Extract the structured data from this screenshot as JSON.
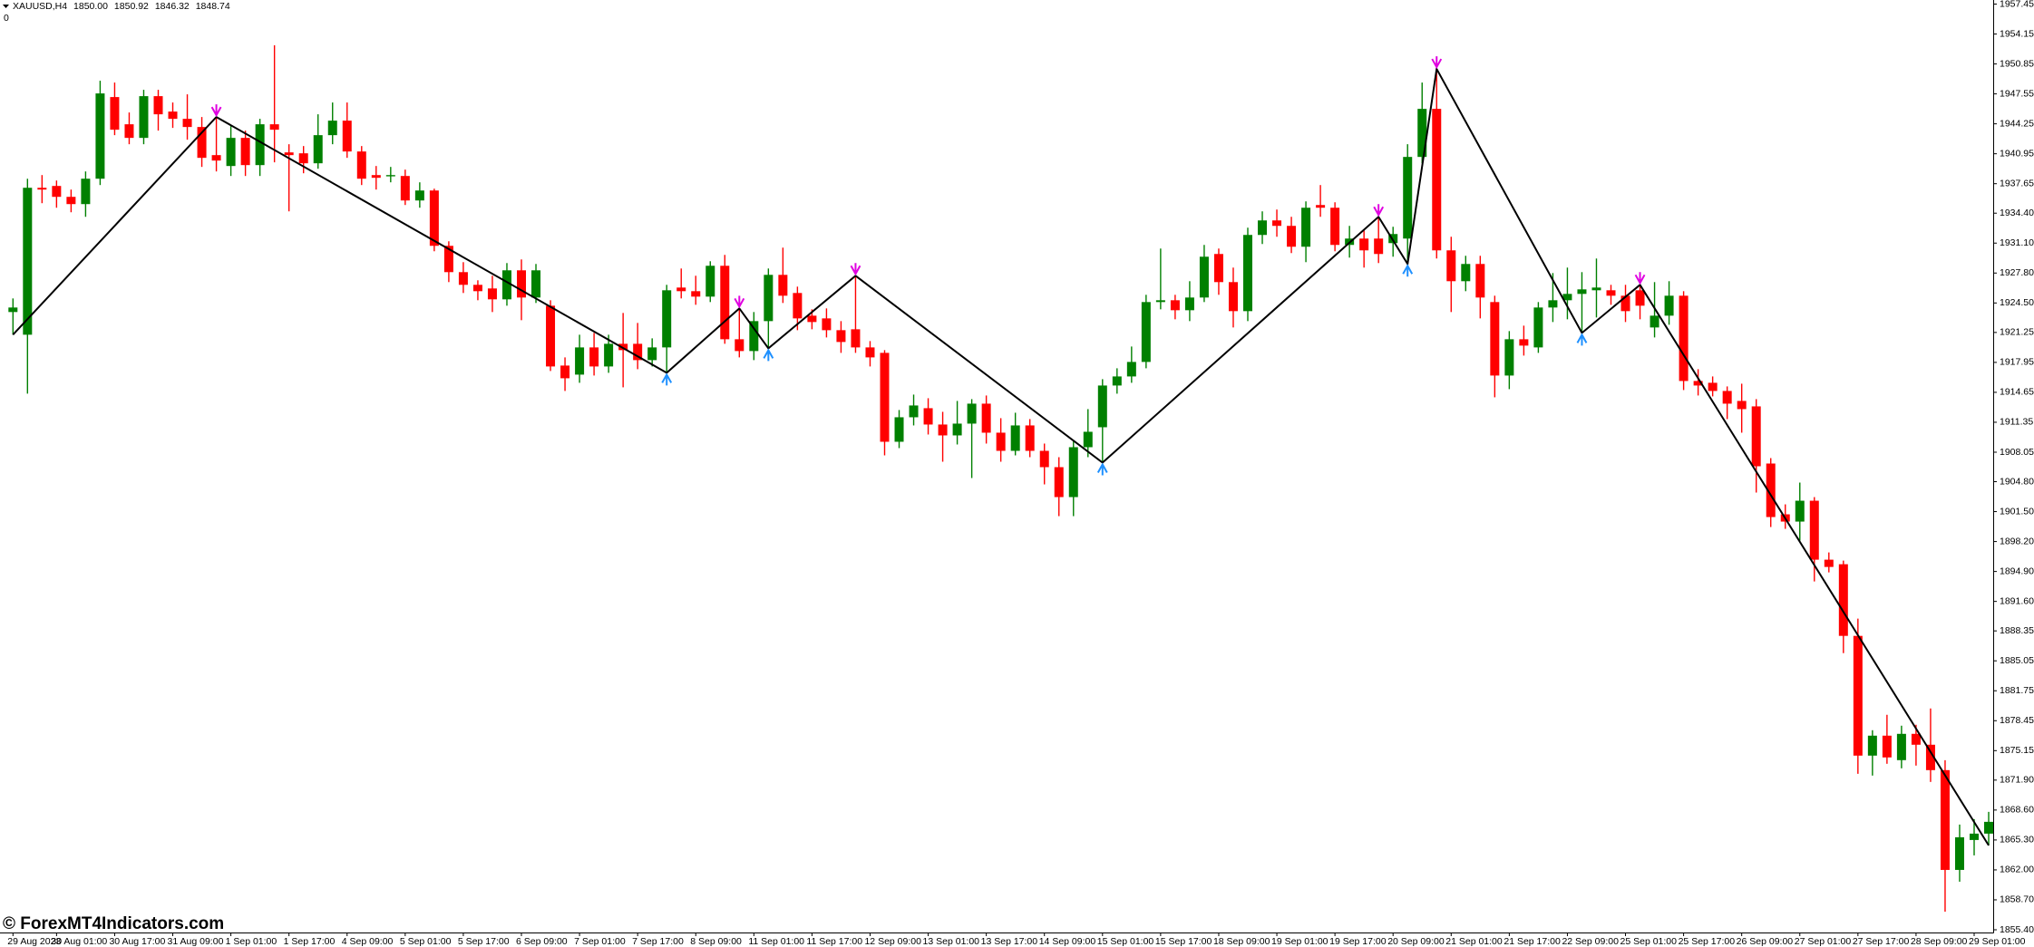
{
  "chart_data": {
    "type": "candlestick",
    "symbol": "XAUUSD,H4",
    "quote": [
      "1850.00",
      "1850.92",
      "1846.32",
      "1848.74"
    ],
    "subtitle": "0",
    "watermark": "© ForexMT4Indicators.com",
    "up_color": "#008000",
    "down_color": "#ff0000",
    "grid": false,
    "ylim": [
      1855.1,
      1957.9
    ],
    "yticks": [
      1957.45,
      1954.15,
      1950.85,
      1947.55,
      1944.25,
      1940.95,
      1937.65,
      {
        "value": 1934.4,
        "label": "1934.40"
      },
      {
        "value": 1931.1,
        "label": "1931.10"
      },
      {
        "value": 1927.8,
        "label": "1927.80"
      },
      {
        "value": 1924.5,
        "label": "1924.50"
      },
      1921.25,
      1917.95,
      1914.65,
      1911.35,
      1908.05,
      {
        "value": 1904.8,
        "label": "1904.80"
      },
      {
        "value": 1901.5,
        "label": "1901.50"
      },
      {
        "value": 1898.2,
        "label": "1898.20"
      },
      {
        "value": 1894.9,
        "label": "1894.90"
      },
      {
        "value": 1891.6,
        "label": "1891.60"
      },
      1888.35,
      1885.05,
      1881.75,
      1878.45,
      1875.15,
      {
        "value": 1871.9,
        "label": "1871.90"
      },
      {
        "value": 1868.6,
        "label": "1868.60"
      },
      {
        "value": 1865.3,
        "label": "1865.30"
      },
      {
        "value": 1862,
        "label": "1862.00"
      },
      {
        "value": 1858.7,
        "label": "1858.70"
      },
      {
        "value": 1855.4,
        "label": "1855.40"
      }
    ],
    "categories": [
      "29 Aug 2023",
      null,
      null,
      "30 Aug 01:00",
      null,
      null,
      null,
      "30 Aug 17:00",
      null,
      null,
      null,
      "31 Aug 09:00",
      null,
      null,
      null,
      "1 Sep 01:00",
      null,
      null,
      null,
      "1 Sep 17:00",
      null,
      null,
      null,
      "4 Sep 09:00",
      null,
      null,
      null,
      "5 Sep 01:00",
      null,
      null,
      null,
      "5 Sep 17:00",
      null,
      null,
      null,
      "6 Sep 09:00",
      null,
      null,
      null,
      "7 Sep 01:00",
      null,
      null,
      null,
      "7 Sep 17:00",
      null,
      null,
      null,
      "8 Sep 09:00",
      null,
      null,
      null,
      "11 Sep 01:00",
      null,
      null,
      null,
      "11 Sep 17:00",
      null,
      null,
      null,
      "12 Sep 09:00",
      null,
      null,
      null,
      "13 Sep 01:00",
      null,
      null,
      null,
      "13 Sep 17:00",
      null,
      null,
      null,
      "14 Sep 09:00",
      null,
      null,
      null,
      "15 Sep 01:00",
      null,
      null,
      null,
      "15 Sep 17:00",
      null,
      null,
      null,
      "18 Sep 09:00",
      null,
      null,
      null,
      "19 Sep 01:00",
      null,
      null,
      null,
      "19 Sep 17:00",
      null,
      null,
      null,
      "20 Sep 09:00",
      null,
      null,
      null,
      "21 Sep 01:00",
      null,
      null,
      null,
      "21 Sep 17:00",
      null,
      null,
      null,
      "22 Sep 09:00",
      null,
      null,
      null,
      "25 Sep 01:00",
      null,
      null,
      null,
      "25 Sep 17:00",
      null,
      null,
      null,
      "26 Sep 09:00",
      null,
      null,
      null,
      "27 Sep 01:00",
      null,
      null,
      null,
      "27 Sep 17:00",
      null,
      null,
      null,
      "28 Sep 09:00",
      null,
      null,
      null,
      "29 Sep 01:00",
      null
    ],
    "open": [
      1923.5,
      1921.0,
      1937.2,
      1937.4,
      1936.2,
      1935.4,
      1938.2,
      1947.2,
      1944.2,
      1942.7,
      1947.3,
      1945.6,
      1944.8,
      1943.9,
      1940.8,
      1939.6,
      1942.7,
      1939.7,
      1944.2,
      1941.1,
      1941.0,
      1939.9,
      1943.0,
      1944.6,
      1941.2,
      1938.6,
      1938.5,
      1938.5,
      1935.8,
      1936.9,
      1930.8,
      1927.9,
      1926.5,
      1926.1,
      1924.9,
      1928.1,
      1925.1,
      1924.2,
      1917.6,
      1916.6,
      1919.6,
      1917.5,
      1920.0,
      1920.0,
      1918.2,
      1919.6,
      1926.2,
      1925.8,
      1925.2,
      1928.6,
      1920.5,
      1919.2,
      1922.5,
      1927.6,
      1925.6,
      1923.1,
      1922.8,
      1921.5,
      1921.6,
      1919.6,
      1919.0,
      1909.2,
      1911.9,
      1912.9,
      1911.1,
      1909.9,
      1911.2,
      1913.4,
      1910.2,
      1908.2,
      1911.0,
      1908.2,
      1906.4,
      1903.1,
      1908.6,
      1910.8,
      1915.4,
      1916.4,
      1918.0,
      1924.6,
      1924.8,
      1923.7,
      1925.1,
      1929.9,
      1926.8,
      1923.6,
      1932.0,
      1933.6,
      1933.0,
      1930.7,
      1935.3,
      1935.0,
      1930.9,
      1931.6,
      1931.6,
      1931.1,
      1931.6,
      1940.6,
      1945.9,
      1930.3,
      1926.9,
      1928.8,
      1924.6,
      1916.5,
      1920.5,
      1919.6,
      1924.0,
      1924.8,
      1925.5,
      1925.9,
      1925.9,
      1925.3,
      1925.9,
      1921.8,
      1923.1,
      1925.3,
      1915.9,
      1915.7,
      1914.8,
      1913.7,
      1913.1,
      1906.8,
      1901.2,
      1900.4,
      1902.7,
      1896.2,
      1895.7,
      1887.8,
      1874.6,
      1876.8,
      1874.1,
      1877.0,
      1875.8,
      1873.0,
      1862.0,
      1865.3,
      1866.0
    ],
    "high": [
      1925.0,
      1938.2,
      1938.6,
      1938.0,
      1937.0,
      1939.0,
      1949.0,
      1948.8,
      1945.5,
      1948.0,
      1948.0,
      1946.6,
      1947.5,
      1945.0,
      1945.0,
      1944.0,
      1943.5,
      1944.8,
      1952.9,
      1942.0,
      1941.8,
      1945.3,
      1946.6,
      1946.6,
      1941.8,
      1939.6,
      1939.5,
      1939.2,
      1937.8,
      1937.1,
      1931.3,
      1929.0,
      1927.0,
      1927.5,
      1928.9,
      1929.3,
      1928.8,
      1924.8,
      1918.5,
      1921.0,
      1921.2,
      1921.0,
      1923.4,
      1922.3,
      1920.6,
      1926.5,
      1928.3,
      1927.5,
      1929.1,
      1929.8,
      1923.9,
      1923.5,
      1928.3,
      1930.6,
      1926.3,
      1923.8,
      1923.9,
      1922.5,
      1927.5,
      1920.3,
      1919.3,
      1912.7,
      1914.4,
      1914.0,
      1912.5,
      1913.7,
      1913.9,
      1914.3,
      1911.8,
      1912.4,
      1911.7,
      1909.0,
      1907.5,
      1909.3,
      1912.8,
      1916.1,
      1917.3,
      1919.7,
      1925.4,
      1930.5,
      1925.4,
      1926.9,
      1930.9,
      1930.5,
      1928.4,
      1932.8,
      1934.6,
      1934.8,
      1934.0,
      1935.7,
      1937.5,
      1935.6,
      1933.0,
      1932.5,
      1934.0,
      1932.9,
      1942.0,
      1948.8,
      1950.3,
      1931.8,
      1929.7,
      1929.7,
      1925.3,
      1921.4,
      1922.0,
      1924.6,
      1927.8,
      1928.4,
      1927.9,
      1929.4,
      1926.5,
      1926.5,
      1926.5,
      1926.8,
      1926.9,
      1925.8,
      1917.2,
      1916.4,
      1915.3,
      1915.6,
      1913.9,
      1907.4,
      1902.3,
      1904.7,
      1903.1,
      1897.0,
      1896.1,
      1889.7,
      1877.4,
      1879.1,
      1877.9,
      1878.0,
      1879.8,
      1874.1,
      1867.0,
      1867.6,
      1868.4
    ],
    "low": [
      1921.0,
      1914.5,
      1935.5,
      1935.0,
      1934.5,
      1934.0,
      1937.5,
      1943.0,
      1942.0,
      1942.0,
      1943.5,
      1943.8,
      1942.5,
      1939.5,
      1939.0,
      1938.5,
      1938.5,
      1938.5,
      1940.0,
      1934.6,
      1938.8,
      1939.3,
      1942.0,
      1940.5,
      1937.5,
      1937.0,
      1937.8,
      1935.3,
      1935.0,
      1930.2,
      1926.8,
      1925.6,
      1924.8,
      1923.5,
      1924.2,
      1922.6,
      1924.5,
      1917.0,
      1914.8,
      1915.7,
      1916.5,
      1916.8,
      1915.2,
      1917.2,
      1917.5,
      1916.8,
      1925.0,
      1924.3,
      1924.6,
      1920.0,
      1918.5,
      1918.2,
      1919.5,
      1924.5,
      1921.5,
      1921.6,
      1920.7,
      1919.0,
      1919.0,
      1917.5,
      1907.7,
      1908.5,
      1911.0,
      1910.0,
      1907.0,
      1908.9,
      1905.2,
      1909.0,
      1907.0,
      1907.7,
      1907.5,
      1904.5,
      1901.0,
      1901.0,
      1907.5,
      1906.9,
      1914.5,
      1915.7,
      1917.3,
      1923.8,
      1922.7,
      1922.5,
      1924.6,
      1925.4,
      1921.8,
      1922.5,
      1931.0,
      1931.8,
      1930.0,
      1929.0,
      1934.0,
      1930.2,
      1929.5,
      1928.4,
      1928.9,
      1929.6,
      1928.8,
      1939.9,
      1929.4,
      1923.5,
      1925.8,
      1922.8,
      1914.1,
      1915.0,
      1918.7,
      1919.0,
      1922.4,
      1922.7,
      1921.2,
      1922.9,
      1924.3,
      1922.4,
      1922.7,
      1920.7,
      1922.1,
      1914.9,
      1914.3,
      1914.2,
      1911.7,
      1910.2,
      1903.6,
      1899.8,
      1899.6,
      1898.3,
      1893.8,
      1894.8,
      1885.9,
      1872.6,
      1872.4,
      1873.7,
      1873.2,
      1873.5,
      1871.7,
      1857.4,
      1860.7,
      1863.6,
      1864.7
    ],
    "close": [
      1924.0,
      1937.2,
      1937.0,
      1936.2,
      1935.4,
      1938.2,
      1947.6,
      1943.6,
      1942.7,
      1947.3,
      1945.3,
      1944.8,
      1943.9,
      1940.5,
      1940.2,
      1942.7,
      1939.7,
      1944.2,
      1943.6,
      1940.8,
      1939.9,
      1943.0,
      1944.6,
      1941.2,
      1938.2,
      1938.3,
      1938.6,
      1935.8,
      1936.9,
      1930.8,
      1927.9,
      1926.5,
      1925.8,
      1924.9,
      1928.1,
      1925.1,
      1928.1,
      1917.5,
      1916.2,
      1919.6,
      1917.5,
      1920.0,
      1919.3,
      1918.2,
      1919.6,
      1925.9,
      1925.8,
      1925.2,
      1928.6,
      1920.5,
      1919.2,
      1922.5,
      1927.6,
      1925.3,
      1922.8,
      1922.4,
      1921.5,
      1920.2,
      1919.6,
      1918.5,
      1909.2,
      1911.9,
      1913.2,
      1911.1,
      1909.9,
      1911.2,
      1913.4,
      1910.2,
      1908.2,
      1911.0,
      1908.2,
      1906.4,
      1903.1,
      1908.6,
      1910.3,
      1915.4,
      1916.4,
      1918.0,
      1924.6,
      1924.8,
      1923.7,
      1925.1,
      1929.6,
      1926.8,
      1923.6,
      1932.0,
      1933.6,
      1933.0,
      1930.7,
      1935.0,
      1935.0,
      1930.9,
      1931.6,
      1930.3,
      1929.9,
      1932.1,
      1940.6,
      1945.9,
      1930.3,
      1926.9,
      1928.8,
      1925.1,
      1916.5,
      1920.5,
      1919.8,
      1924.0,
      1924.8,
      1925.5,
      1926.0,
      1926.2,
      1925.3,
      1923.6,
      1924.2,
      1923.1,
      1925.3,
      1915.9,
      1915.4,
      1914.8,
      1913.4,
      1912.8,
      1906.5,
      1900.9,
      1900.4,
      1902.7,
      1896.2,
      1895.4,
      1887.8,
      1874.6,
      1876.8,
      1874.4,
      1877.0,
      1875.8,
      1873.0,
      1862.0,
      1865.6,
      1866.0,
      1867.3
    ],
    "zigzag": {
      "color": "#000000",
      "peak_color": "#e000e0",
      "trough_color": "#1e90ff",
      "x": [
        0,
        14,
        45,
        50,
        52,
        58,
        75,
        94,
        96,
        98,
        108,
        112,
        136
      ],
      "values": [
        1921.0,
        1945.0,
        1916.8,
        1923.9,
        1919.5,
        1927.5,
        1906.9,
        1934.0,
        1928.8,
        1950.3,
        1921.2,
        1926.5,
        1864.7
      ]
    }
  }
}
